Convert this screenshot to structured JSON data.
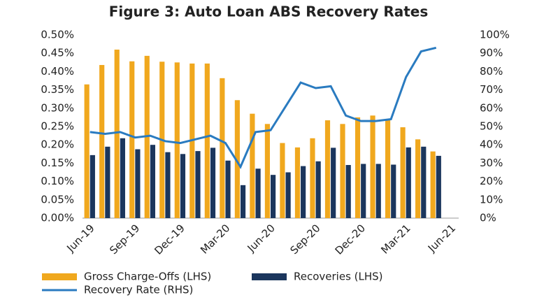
{
  "chart_data": {
    "type": "bar",
    "title": "Figure 3: Auto Loan ABS Recovery Rates",
    "categories": [
      "Jun-19",
      null,
      null,
      "Sep-19",
      null,
      null,
      "Dec-19",
      null,
      null,
      "Mar-20",
      null,
      null,
      "Jun-20",
      null,
      null,
      "Sep-20",
      null,
      null,
      "Dec-20",
      null,
      null,
      "Mar-21",
      null,
      null,
      "Jun-21"
    ],
    "series": [
      {
        "name": "Gross Charge-Offs (LHS)",
        "type": "bar",
        "color": "#f0a81e",
        "values": [
          0.365,
          0.418,
          0.46,
          0.428,
          0.443,
          0.427,
          0.425,
          0.422,
          0.422,
          0.382,
          0.322,
          0.285,
          0.257,
          0.205,
          0.193,
          0.218,
          0.267,
          0.257,
          0.275,
          0.28,
          0.27,
          0.248,
          0.215,
          0.182,
          null
        ]
      },
      {
        "name": "Recoveries (LHS)",
        "type": "bar",
        "color": "#1b365d",
        "values": [
          0.172,
          0.195,
          0.218,
          0.188,
          0.2,
          0.18,
          0.175,
          0.183,
          0.192,
          0.157,
          0.09,
          0.135,
          0.118,
          0.125,
          0.142,
          0.155,
          0.192,
          0.145,
          0.148,
          0.148,
          0.146,
          0.193,
          0.195,
          0.17,
          null
        ]
      },
      {
        "name": "Recovery Rate (RHS)",
        "type": "line",
        "axis": "y2",
        "color": "#2a7bc0",
        "values": [
          47,
          46,
          47,
          44,
          45,
          42,
          41,
          43,
          45,
          41,
          28,
          47,
          48,
          61,
          74,
          71,
          72,
          56,
          53,
          53,
          54,
          77,
          91,
          93,
          null
        ]
      }
    ],
    "ylim": [
      0,
      0.5
    ],
    "yticks": [
      {
        "value": 0,
        "label": "0.00%"
      },
      {
        "value": 0.05,
        "label": "0.05%"
      },
      {
        "value": 0.1,
        "label": "0.10%"
      },
      {
        "value": 0.15,
        "label": "0.15%"
      },
      {
        "value": 0.2,
        "label": "0.20%"
      },
      {
        "value": 0.25,
        "label": "0.25%"
      },
      {
        "value": 0.3,
        "label": "0.30%"
      },
      {
        "value": 0.35,
        "label": "0.35%"
      },
      {
        "value": 0.4,
        "label": "0.40%"
      },
      {
        "value": 0.45,
        "label": "0.45%"
      },
      {
        "value": 0.5,
        "label": "0.50%"
      }
    ],
    "y2lim": [
      0,
      100
    ],
    "y2ticks": [
      {
        "value": 0,
        "label": "0%"
      },
      {
        "value": 10,
        "label": "10%"
      },
      {
        "value": 20,
        "label": "20%"
      },
      {
        "value": 30,
        "label": "30%"
      },
      {
        "value": 40,
        "label": "40%"
      },
      {
        "value": 50,
        "label": "50%"
      },
      {
        "value": 60,
        "label": "60%"
      },
      {
        "value": 70,
        "label": "70%"
      },
      {
        "value": 80,
        "label": "80%"
      },
      {
        "value": 90,
        "label": "90%"
      },
      {
        "value": 100,
        "label": "100%"
      }
    ],
    "grid": false,
    "legend": "bottom"
  }
}
